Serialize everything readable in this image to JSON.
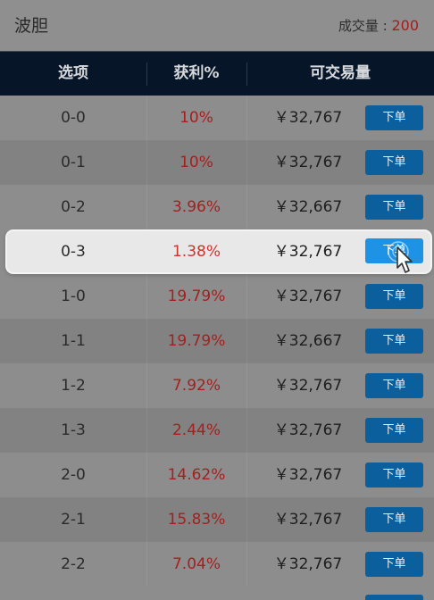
{
  "title_bar": {
    "title": "波胆",
    "volume_label": "成交量 : ",
    "volume_value": "200"
  },
  "table": {
    "headers": [
      "选项",
      "获利%",
      "可交易量"
    ],
    "button_label": "下单",
    "rows": [
      {
        "option": "0-0",
        "profit": "10%",
        "amount": "￥32,767"
      },
      {
        "option": "0-1",
        "profit": "10%",
        "amount": "￥32,767"
      },
      {
        "option": "0-2",
        "profit": "3.96%",
        "amount": "￥32,667"
      },
      {
        "option": "0-3",
        "profit": "1.38%",
        "amount": "￥32,767",
        "active": true
      },
      {
        "option": "1-0",
        "profit": "19.79%",
        "amount": "￥32,767"
      },
      {
        "option": "1-1",
        "profit": "19.79%",
        "amount": "￥32,667"
      },
      {
        "option": "1-2",
        "profit": "7.92%",
        "amount": "￥32,767"
      },
      {
        "option": "1-3",
        "profit": "2.44%",
        "amount": "￥32,767"
      },
      {
        "option": "2-0",
        "profit": "14.62%",
        "amount": "￥32,767"
      },
      {
        "option": "2-1",
        "profit": "15.83%",
        "amount": "￥32,767"
      },
      {
        "option": "2-2",
        "profit": "7.04%",
        "amount": "￥32,767"
      }
    ]
  },
  "colors": {
    "header_bg": "#061528",
    "profit_red": "#a51f1f",
    "button_blue": "#0b5f9c",
    "active_button_blue": "#1e93e6"
  },
  "icons": {
    "cursor": "pointer-hand-icon"
  }
}
